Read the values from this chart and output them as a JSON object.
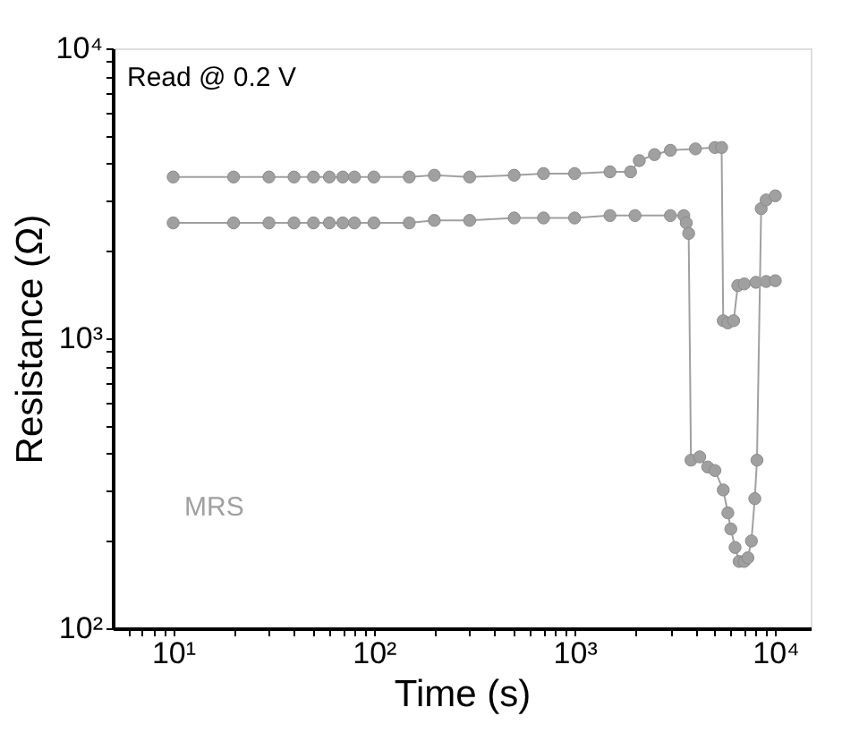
{
  "chart_data": {
    "type": "line",
    "xlabel": "Time (s)",
    "ylabel": "Resistance (Ω)",
    "annotations": [
      "Read @ 0.2 V",
      "MRS"
    ],
    "log": "xy",
    "marker": "circle",
    "line_style": "solid",
    "grid": false,
    "xlim": [
      5,
      15000
    ],
    "ylim": [
      100,
      10000
    ],
    "xticks": [
      {
        "value": 6,
        "label": null
      },
      {
        "value": 7,
        "label": null
      },
      {
        "value": 8,
        "label": null
      },
      {
        "value": 9,
        "label": null
      },
      {
        "value": 10,
        "label": "10¹"
      },
      {
        "value": 20,
        "label": null
      },
      {
        "value": 30,
        "label": null
      },
      {
        "value": 40,
        "label": null
      },
      {
        "value": 50,
        "label": null
      },
      {
        "value": 60,
        "label": null
      },
      {
        "value": 70,
        "label": null
      },
      {
        "value": 80,
        "label": null
      },
      {
        "value": 90,
        "label": null
      },
      {
        "value": 100,
        "label": "10²"
      },
      {
        "value": 200,
        "label": null
      },
      {
        "value": 300,
        "label": null
      },
      {
        "value": 400,
        "label": null
      },
      {
        "value": 500,
        "label": null
      },
      {
        "value": 600,
        "label": null
      },
      {
        "value": 700,
        "label": null
      },
      {
        "value": 800,
        "label": null
      },
      {
        "value": 900,
        "label": null
      },
      {
        "value": 1000,
        "label": "10³"
      },
      {
        "value": 2000,
        "label": null
      },
      {
        "value": 3000,
        "label": null
      },
      {
        "value": 4000,
        "label": null
      },
      {
        "value": 5000,
        "label": null
      },
      {
        "value": 6000,
        "label": null
      },
      {
        "value": 7000,
        "label": null
      },
      {
        "value": 8000,
        "label": null
      },
      {
        "value": 9000,
        "label": null
      },
      {
        "value": 10000,
        "label": "10⁴"
      }
    ],
    "yticks": [
      {
        "value": 100,
        "label": "10²"
      },
      {
        "value": 200,
        "label": null
      },
      {
        "value": 300,
        "label": null
      },
      {
        "value": 400,
        "label": null
      },
      {
        "value": 500,
        "label": null
      },
      {
        "value": 600,
        "label": null
      },
      {
        "value": 700,
        "label": null
      },
      {
        "value": 800,
        "label": null
      },
      {
        "value": 900,
        "label": null
      },
      {
        "value": 1000,
        "label": "10³"
      },
      {
        "value": 2000,
        "label": null
      },
      {
        "value": 3000,
        "label": null
      },
      {
        "value": 4000,
        "label": null
      },
      {
        "value": 5000,
        "label": null
      },
      {
        "value": 6000,
        "label": null
      },
      {
        "value": 7000,
        "label": null
      },
      {
        "value": 8000,
        "label": null
      },
      {
        "value": 9000,
        "label": null
      },
      {
        "value": 10000,
        "label": "10⁴"
      }
    ],
    "series": [
      {
        "color": "#a0a0a0",
        "x": [
          10,
          20,
          30,
          40,
          50,
          60,
          70,
          80,
          100,
          150,
          200,
          300,
          500,
          700,
          1000,
          1500,
          1900,
          2100,
          2500,
          3000,
          4000,
          5000,
          5400,
          5500,
          5800,
          6200,
          6500,
          7000,
          8000,
          9000,
          10000
        ],
        "values": [
          3600,
          3600,
          3600,
          3600,
          3600,
          3600,
          3600,
          3600,
          3600,
          3600,
          3650,
          3600,
          3650,
          3700,
          3700,
          3750,
          3750,
          4100,
          4300,
          4450,
          4500,
          4550,
          4550,
          1150,
          1130,
          1150,
          1520,
          1540,
          1560,
          1570,
          1580
        ]
      },
      {
        "color": "#a0a0a0",
        "x": [
          10,
          20,
          30,
          40,
          50,
          60,
          70,
          80,
          100,
          150,
          200,
          300,
          500,
          700,
          1000,
          1500,
          2000,
          3000,
          3500,
          3600,
          3700,
          3800,
          4200,
          4600,
          5000,
          5500,
          5800,
          6000,
          6300,
          6600,
          7000,
          7300,
          7600,
          7900,
          8100,
          8500,
          9000,
          10000
        ],
        "values": [
          2500,
          2500,
          2500,
          2500,
          2500,
          2500,
          2500,
          2500,
          2500,
          2500,
          2550,
          2550,
          2600,
          2600,
          2600,
          2650,
          2650,
          2650,
          2650,
          2500,
          2300,
          380,
          390,
          360,
          350,
          300,
          250,
          220,
          190,
          170,
          170,
          175,
          200,
          280,
          380,
          2800,
          3000,
          3100
        ]
      }
    ]
  }
}
